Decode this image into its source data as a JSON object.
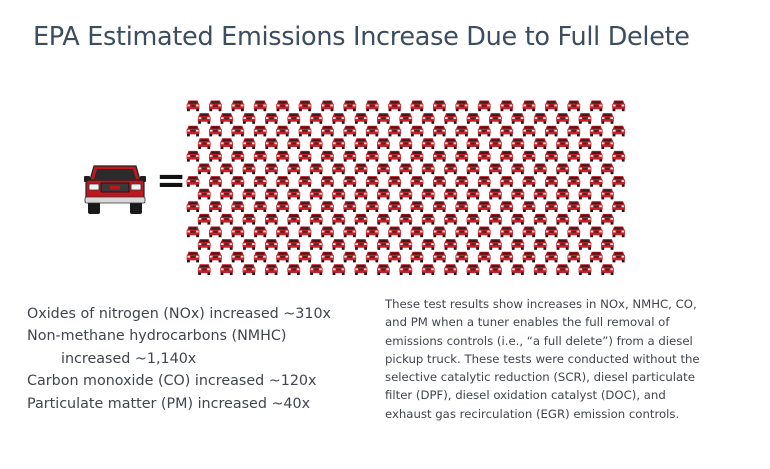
{
  "slide": {
    "title": "EPA Estimated Emissions Increase Due to Full Delete",
    "equals_sign": "=",
    "icons": {
      "single_truck": "pickup-truck-icon",
      "grid_truck": "car-icon"
    },
    "colors": {
      "truck_red": "#c0161f",
      "title": "#3d4d60",
      "text": "#40454c"
    },
    "stats": {
      "nox": "Oxides of nitrogen (NOx) increased ~310x",
      "nmhc_line1": "Non-methane hydrocarbons (NMHC)",
      "nmhc_line2": "increased ~1,140x",
      "co": "Carbon monoxide (CO) increased ~120x",
      "pm": "Particulate matter (PM) increased ~40x"
    },
    "description": {
      "line1": "These test results show increases in NOx, NMHC, CO,",
      "line2": "and PM when a tuner enables the full removal of",
      "line3": "emissions controls (i.e., “a full delete”) from a diesel",
      "line4": "pickup truck. These tests were conducted without the",
      "line5": "selective catalytic reduction (SCR), diesel particulate",
      "line6": "filter (DPF), diesel oxidation catalyst (DOC), and",
      "line7": "exhaust gas recirculation (EGR) emission controls."
    }
  }
}
